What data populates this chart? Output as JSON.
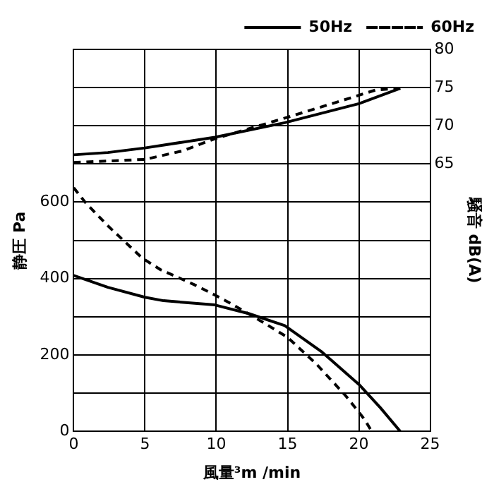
{
  "chart_data": {
    "type": "line",
    "xlabel": "風量³m /min",
    "ylabel": "静圧 Pa",
    "y2label": "騒音 dB(A)",
    "xlim": [
      0,
      25
    ],
    "xticks": [
      0,
      5,
      10,
      15,
      20,
      25
    ],
    "ylim": [
      0,
      1000
    ],
    "yticks": [
      0,
      {
        "value": 100,
        "label": null
      },
      200,
      {
        "value": 300,
        "label": null
      },
      400,
      {
        "value": 500,
        "label": null
      },
      600,
      {
        "value": 700,
        "label": null
      },
      {
        "value": 800,
        "label": null
      },
      {
        "value": 900,
        "label": null
      },
      {
        "value": 1000,
        "label": null
      }
    ],
    "y2lim": [
      30,
      80
    ],
    "y2ticks": [
      65,
      70,
      75,
      80
    ],
    "grid": true,
    "legend": "top right",
    "marker": "none",
    "series": [
      {
        "name": "50Hz",
        "color": "#000000",
        "line_style": "solid",
        "x": [
          0,
          2.4,
          5,
          6.3,
          9.9,
          12.3,
          14.8,
          17.4,
          20,
          21.5,
          22.9
        ],
        "values": [
          408,
          377,
          351,
          342,
          331,
          308,
          277,
          208,
          123,
          62,
          0
        ]
      },
      {
        "name": "60Hz",
        "color": "#000000",
        "line_style": "dashed",
        "x": [
          0,
          0.8,
          2.4,
          4.8,
          6.1,
          8.4,
          9.9,
          11,
          13.3,
          15,
          17,
          19.1,
          20.4,
          20.9
        ],
        "values": [
          638,
          600,
          538,
          454,
          423,
          385,
          357,
          335,
          285,
          246,
          177,
          92,
          31,
          0
        ]
      },
      {
        "color": "#000000",
        "line_style": "solid",
        "axis": "y2",
        "x": [
          0,
          2.4,
          5,
          9.9,
          14.8,
          20,
          22.9
        ],
        "values": [
          66.2,
          66.5,
          67.1,
          68.5,
          70.4,
          72.9,
          74.9
        ]
      },
      {
        "color": "#000000",
        "line_style": "dashed",
        "axis": "y2",
        "x": [
          0,
          5,
          7.6,
          9.9,
          14.8,
          19.5,
          21.2,
          22.9
        ],
        "values": [
          65.2,
          65.6,
          66.7,
          68.3,
          71.0,
          73.7,
          74.7,
          74.9
        ]
      }
    ]
  }
}
